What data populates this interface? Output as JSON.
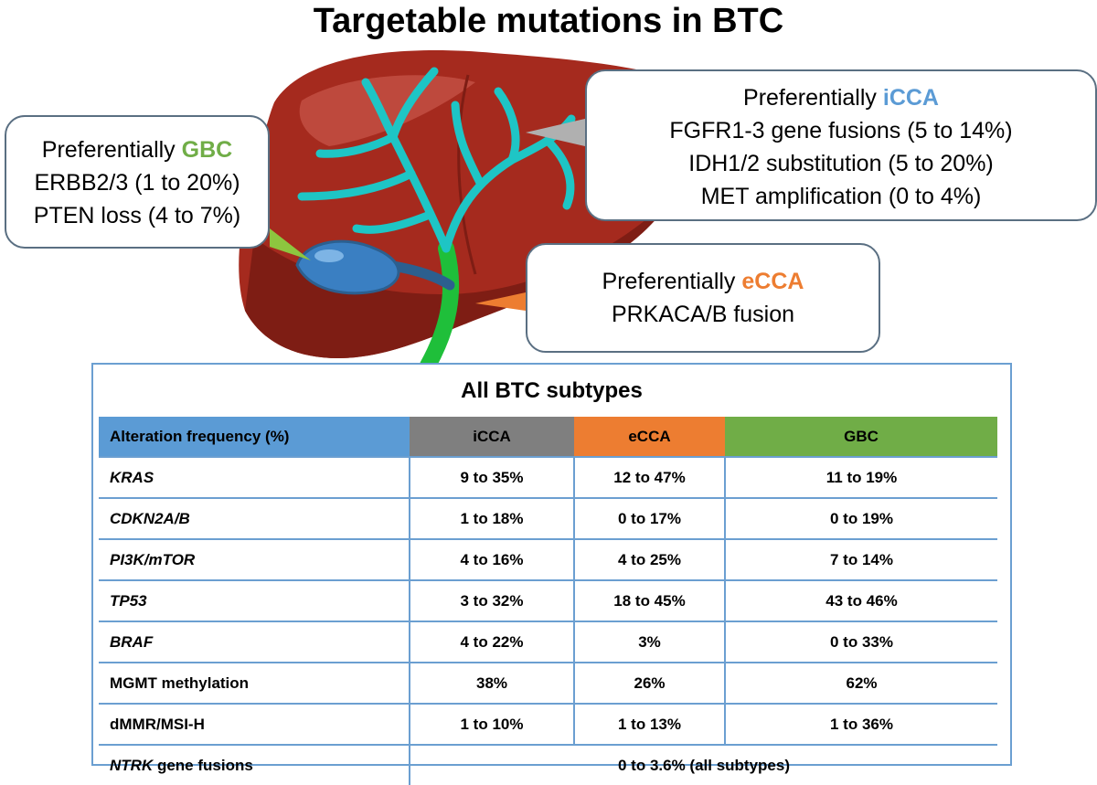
{
  "title": "Targetable mutations in BTC",
  "colors": {
    "gbc": "#70ad47",
    "icca": "#5b9bd5",
    "ecca": "#ed7d31",
    "header_alteration": "#5b9bd5",
    "header_icca": "#7f7f7f",
    "header_ecca": "#ed7d31",
    "header_gbc": "#70ad47",
    "liver": "#a52a1e",
    "ducts": "#1ec5c5",
    "common_duct": "#1fbf3a",
    "gallbladder": "#3a7fc2"
  },
  "callouts": {
    "gbc": {
      "prefix": "Preferentially ",
      "highlight": "GBC",
      "lines": [
        "ERBB2/3 (1 to 20%)",
        "PTEN loss (4 to 7%)"
      ]
    },
    "icca": {
      "prefix": "Preferentially ",
      "highlight": "iCCA",
      "lines": [
        "FGFR1-3 gene fusions (5 to 14%)",
        "IDH1/2 substitution (5 to 20%)",
        "MET amplification (0 to 4%)"
      ]
    },
    "ecca": {
      "prefix": "Preferentially ",
      "highlight": "eCCA",
      "lines": [
        "PRKACA/B fusion"
      ]
    }
  },
  "table": {
    "title": "All BTC subtypes",
    "headers": [
      "Alteration frequency (%)",
      "iCCA",
      "eCCA",
      "GBC"
    ],
    "rows": [
      {
        "label": "KRAS",
        "values": [
          "9 to 35%",
          "12 to 47%",
          "11 to 19%"
        ]
      },
      {
        "label": "CDKN2A/B",
        "values": [
          "1 to 18%",
          "0 to 17%",
          "0 to 19%"
        ]
      },
      {
        "label": "PI3K/mTOR",
        "values": [
          "4 to 16%",
          "4 to 25%",
          "7 to 14%"
        ]
      },
      {
        "label": "TP53",
        "values": [
          "3 to 32%",
          "18 to 45%",
          "43 to 46%"
        ]
      },
      {
        "label": "BRAF",
        "values": [
          "4 to 22%",
          "3%",
          "0 to 33%"
        ]
      },
      {
        "label": "MGMT methylation",
        "values": [
          "38%",
          "26%",
          "62%"
        ]
      },
      {
        "label": "dMMR/MSI-H",
        "values": [
          "1 to 10%",
          "1 to 13%",
          "1 to 36%"
        ]
      }
    ],
    "last_row": {
      "label_italic": "NTRK",
      "label_rest": " gene fusions",
      "merged_value": "0 to 3.6% (all subtypes)"
    }
  }
}
